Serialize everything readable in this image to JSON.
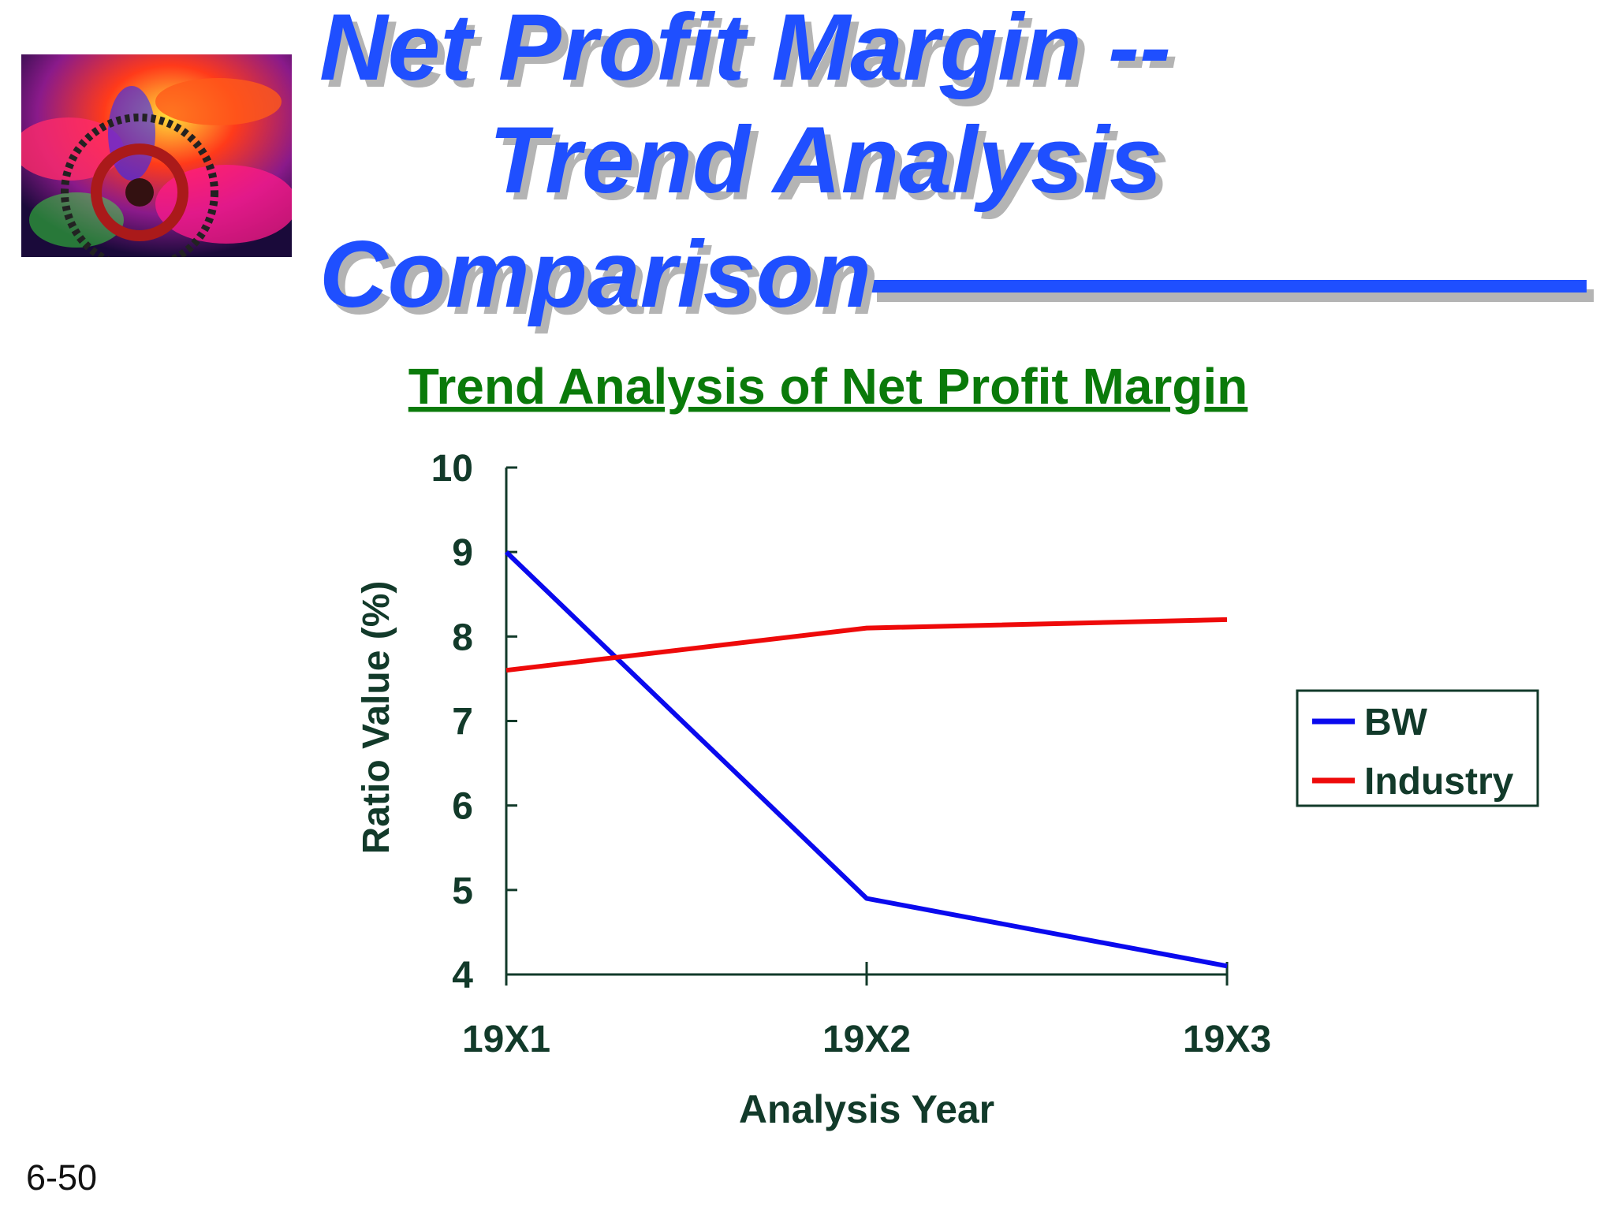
{
  "slide": {
    "title_lines": [
      "Net Profit Margin --",
      "Trend Analysis",
      "Comparison"
    ],
    "slide_number": "6-50",
    "title_color": "#1f4fff",
    "subtitle_color": "#0a7a0a"
  },
  "chart_data": {
    "type": "line",
    "title": "Trend Analysis of Net Profit Margin",
    "xlabel": "Analysis Year",
    "ylabel": "Ratio Value (%)",
    "categories": [
      "19X1",
      "19X2",
      "19X3"
    ],
    "ylim": [
      4,
      10
    ],
    "yticks": [
      4,
      5,
      6,
      7,
      8,
      9,
      10
    ],
    "grid": false,
    "legend_position": "right",
    "series": [
      {
        "name": "BW",
        "values": [
          9.0,
          4.9,
          4.1
        ],
        "color": "#0a0aee"
      },
      {
        "name": "Industry",
        "values": [
          7.6,
          8.1,
          8.2
        ],
        "color": "#ee0a0a"
      }
    ]
  }
}
